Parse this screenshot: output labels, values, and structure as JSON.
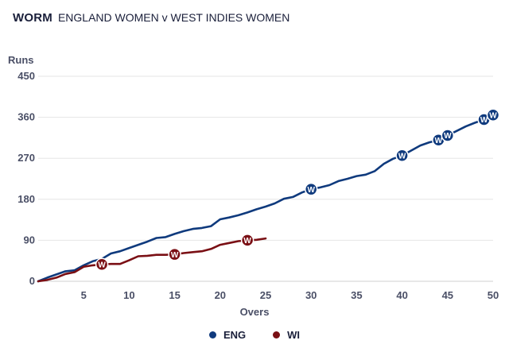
{
  "header": {
    "kind": "WORM",
    "match": "ENGLAND WOMEN v WEST INDIES WOMEN"
  },
  "colors": {
    "ENG": "#0f3a7d",
    "WI": "#7a0f14",
    "grid": "#e6e6e6",
    "text": "#4a4f66"
  },
  "chart_data": {
    "type": "line",
    "title": "WORM",
    "subtitle": "ENGLAND WOMEN v WEST INDIES WOMEN",
    "ylabel": "Runs",
    "xlabel": "Overs",
    "xlim": [
      0,
      50
    ],
    "ylim": [
      0,
      450
    ],
    "xticks": [
      5,
      10,
      15,
      20,
      25,
      30,
      35,
      40,
      45,
      50
    ],
    "yticks": [
      0,
      90,
      180,
      270,
      360,
      450
    ],
    "grid": true,
    "legend_position": "bottom",
    "wicket_marker_label": "W",
    "series": [
      {
        "name": "ENG",
        "color": "#0f3a7d",
        "x": [
          0,
          1,
          2,
          3,
          4,
          5,
          6,
          7,
          8,
          9,
          10,
          11,
          12,
          13,
          14,
          15,
          16,
          17,
          18,
          19,
          20,
          21,
          22,
          23,
          24,
          25,
          26,
          27,
          28,
          29,
          30,
          31,
          32,
          33,
          34,
          35,
          36,
          37,
          38,
          39,
          40,
          41,
          42,
          43,
          44,
          45,
          46,
          47,
          48,
          49,
          50
        ],
        "y": [
          0,
          8,
          15,
          22,
          24,
          35,
          44,
          49,
          61,
          66,
          73,
          80,
          87,
          95,
          97,
          104,
          110,
          115,
          117,
          121,
          136,
          140,
          145,
          151,
          158,
          164,
          171,
          181,
          185,
          195,
          202,
          206,
          211,
          220,
          225,
          231,
          234,
          242,
          258,
          269,
          276,
          287,
          298,
          305,
          310,
          320,
          330,
          340,
          348,
          355,
          365
        ],
        "wickets": [
          {
            "over": 30,
            "runs": 202
          },
          {
            "over": 40,
            "runs": 276
          },
          {
            "over": 44,
            "runs": 310
          },
          {
            "over": 45,
            "runs": 320
          },
          {
            "over": 49,
            "runs": 355
          },
          {
            "over": 50,
            "runs": 365
          }
        ]
      },
      {
        "name": "WI",
        "color": "#7a0f14",
        "x": [
          0,
          1,
          2,
          3,
          4,
          5,
          6,
          7,
          8,
          9,
          10,
          11,
          12,
          13,
          14,
          15,
          16,
          17,
          18,
          19,
          20,
          21,
          22,
          23,
          24,
          25
        ],
        "y": [
          0,
          3,
          8,
          16,
          20,
          32,
          35,
          37,
          38,
          38,
          46,
          55,
          56,
          58,
          58,
          59,
          62,
          64,
          66,
          71,
          80,
          84,
          88,
          90,
          91,
          94
        ],
        "wickets": [
          {
            "over": 7,
            "runs": 37
          },
          {
            "over": 15,
            "runs": 59
          },
          {
            "over": 23,
            "runs": 90
          }
        ]
      }
    ]
  },
  "legend": {
    "items": [
      {
        "label": "ENG"
      },
      {
        "label": "WI"
      }
    ]
  }
}
